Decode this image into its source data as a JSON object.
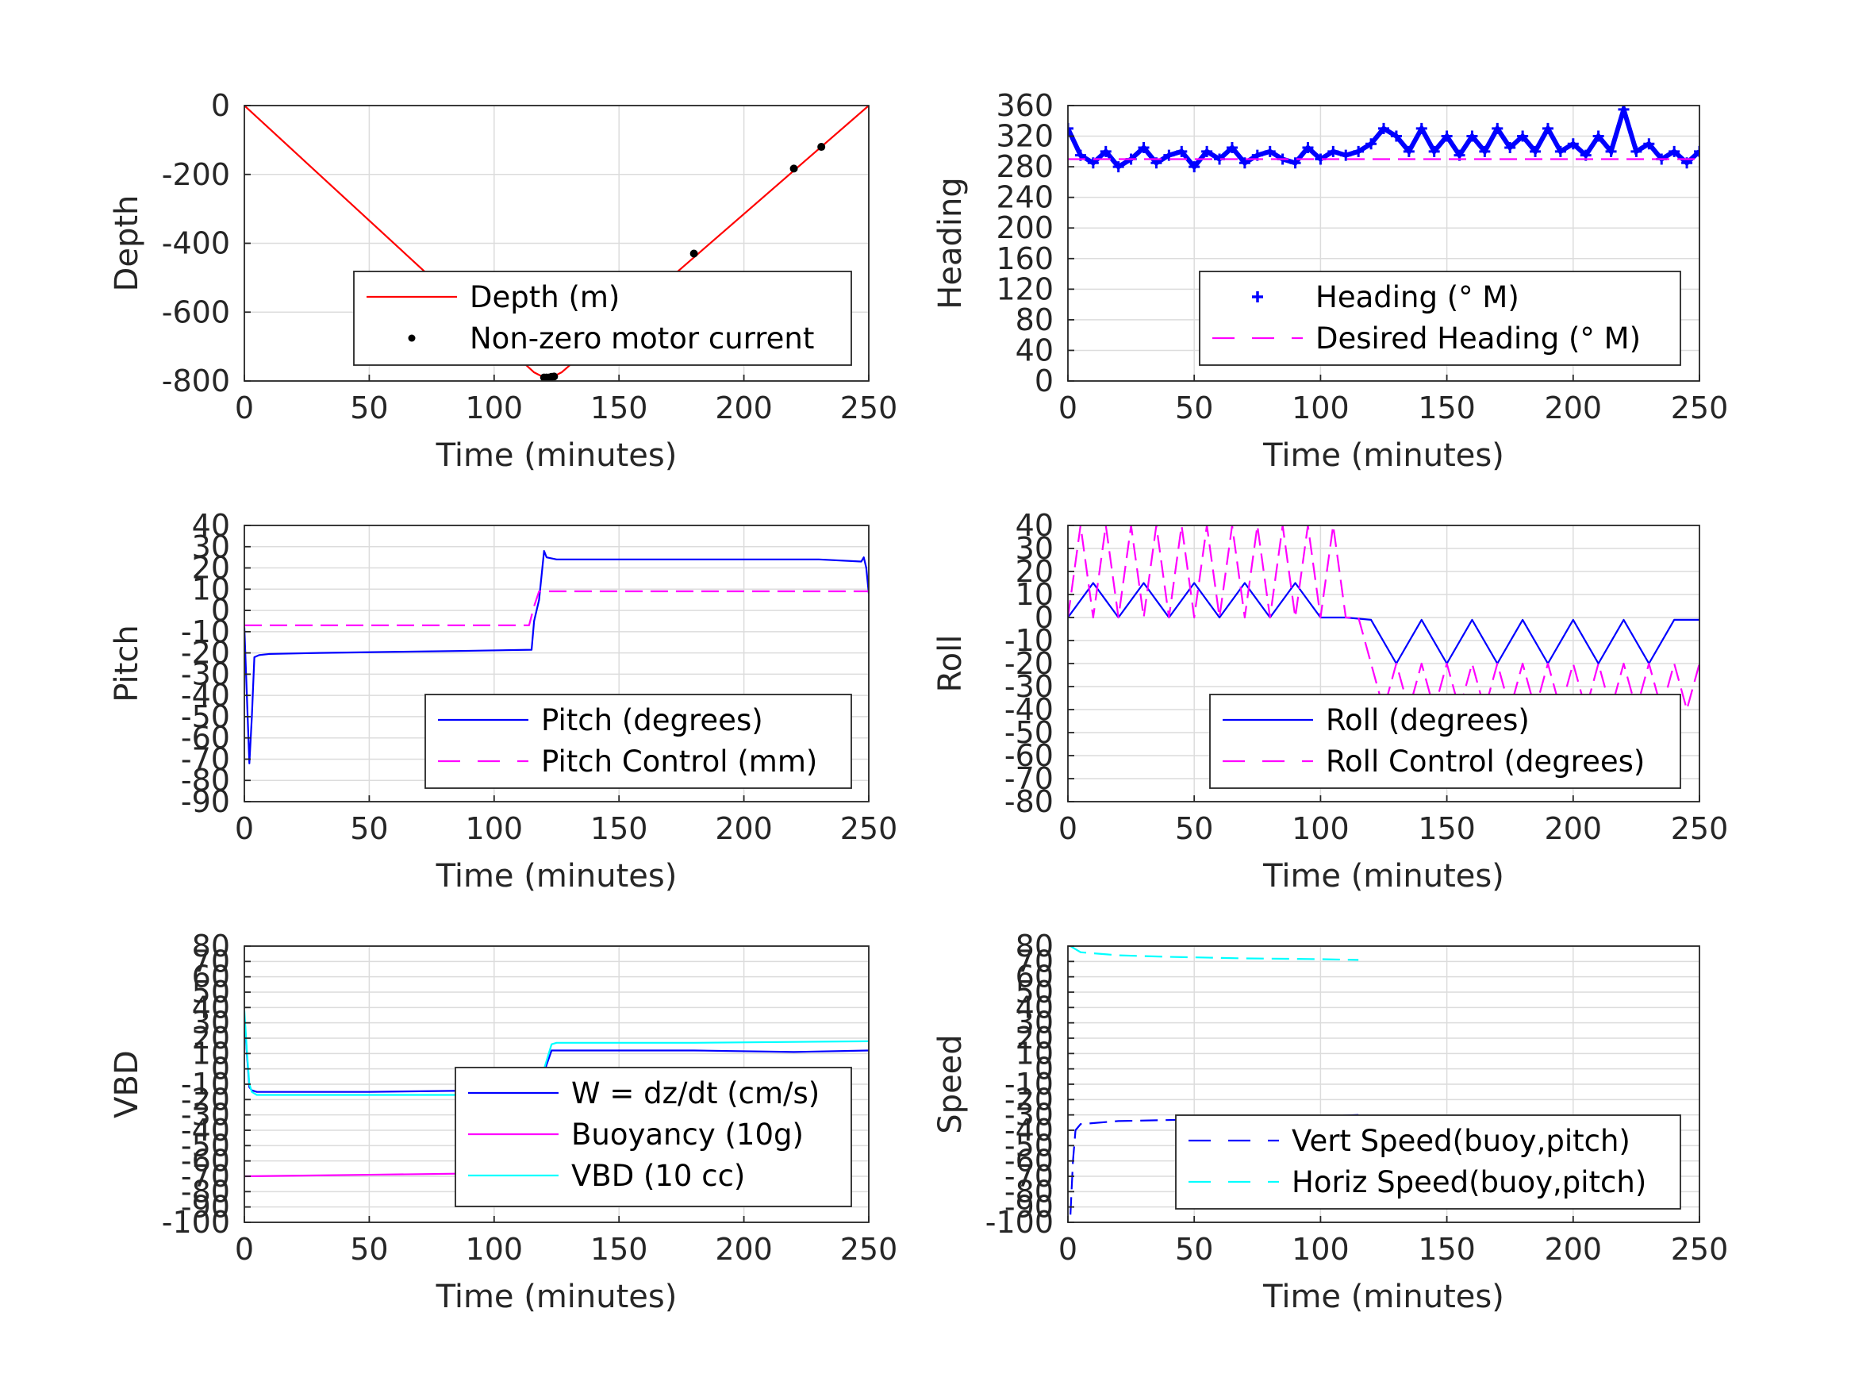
{
  "chart_data": [
    {
      "type": "line",
      "id": "depth",
      "xlabel": "Time (minutes)",
      "ylabel": "Depth",
      "xlim": [
        0,
        250
      ],
      "ylim": [
        -800,
        0
      ],
      "xticks": [
        "0",
        "50",
        "100",
        "150",
        "200",
        "250"
      ],
      "yticks": [
        "0",
        "-200",
        "-400",
        "-600",
        "-800"
      ],
      "grid": true,
      "legend_position": "bottom-right",
      "series": [
        {
          "name": "Depth (m)",
          "color": "#ff0000",
          "style": "solid",
          "x": [
            0,
            116,
            120,
            123,
            127,
            250
          ],
          "y": [
            0,
            -775,
            -790,
            -790,
            -775,
            0
          ]
        },
        {
          "name": "Non-zero motor current",
          "color": "#000000",
          "style": "dot",
          "x": [
            120,
            121,
            122,
            123,
            124,
            180,
            220,
            231
          ],
          "y": [
            -790,
            -790,
            -790,
            -788,
            -787,
            -430,
            -183,
            -120
          ]
        }
      ]
    },
    {
      "type": "line",
      "id": "heading",
      "xlabel": "Time (minutes)",
      "ylabel": "Heading",
      "xlim": [
        0,
        250
      ],
      "ylim": [
        0,
        360
      ],
      "xticks": [
        "0",
        "50",
        "100",
        "150",
        "200",
        "250"
      ],
      "yticks": [
        "0",
        "40",
        "80",
        "120",
        "160",
        "200",
        "240",
        "280",
        "320",
        "360"
      ],
      "grid": true,
      "legend_position": "bottom-right",
      "series": [
        {
          "name": "Heading (° M)",
          "color": "#0000ff",
          "style": "plus",
          "x": [
            0,
            5,
            10,
            15,
            20,
            25,
            30,
            35,
            40,
            45,
            50,
            55,
            60,
            65,
            70,
            75,
            80,
            85,
            90,
            95,
            100,
            105,
            110,
            115,
            120,
            125,
            130,
            135,
            140,
            145,
            150,
            155,
            160,
            165,
            170,
            175,
            180,
            185,
            190,
            195,
            200,
            205,
            210,
            215,
            220,
            225,
            230,
            235,
            240,
            245,
            250
          ],
          "y": [
            330,
            295,
            285,
            300,
            280,
            290,
            305,
            285,
            295,
            300,
            280,
            300,
            290,
            305,
            285,
            295,
            300,
            290,
            285,
            305,
            290,
            300,
            295,
            300,
            310,
            330,
            320,
            300,
            330,
            300,
            320,
            295,
            320,
            300,
            330,
            305,
            320,
            300,
            330,
            300,
            310,
            295,
            320,
            300,
            355,
            300,
            310,
            290,
            300,
            285,
            300
          ]
        },
        {
          "name": "Desired Heading (° M)",
          "color": "#ff00ff",
          "style": "dash",
          "x": [
            0,
            250
          ],
          "y": [
            290,
            290
          ]
        }
      ]
    },
    {
      "type": "line",
      "id": "pitch",
      "xlabel": "Time (minutes)",
      "ylabel": "Pitch",
      "xlim": [
        0,
        250
      ],
      "ylim": [
        -90,
        40
      ],
      "xticks": [
        "0",
        "50",
        "100",
        "150",
        "200",
        "250"
      ],
      "yticks": [
        "40",
        "30",
        "20",
        "10",
        "0",
        "-10",
        "-20",
        "-30",
        "-40",
        "-50",
        "-60",
        "-70",
        "-80",
        "-90"
      ],
      "grid": true,
      "legend_position": "bottom-right",
      "series": [
        {
          "name": "Pitch (degrees)",
          "color": "#0000ff",
          "style": "solid",
          "x": [
            0,
            1,
            2,
            3,
            4,
            6,
            10,
            30,
            60,
            90,
            115,
            116,
            118,
            120,
            121,
            125,
            150,
            200,
            230,
            247,
            248,
            249,
            250
          ],
          "y": [
            -8,
            -40,
            -72,
            -50,
            -22,
            -21,
            -20.5,
            -20,
            -19.5,
            -19,
            -18.5,
            -5,
            5,
            28,
            25,
            24,
            24,
            24,
            24,
            23,
            25,
            20,
            8
          ]
        },
        {
          "name": "Pitch Control (mm)",
          "color": "#ff00ff",
          "style": "dash",
          "x": [
            0,
            114,
            116,
            118,
            250
          ],
          "y": [
            -7,
            -7,
            2,
            9,
            9
          ]
        }
      ]
    },
    {
      "type": "line",
      "id": "roll",
      "xlabel": "Time (minutes)",
      "ylabel": "Roll",
      "xlim": [
        0,
        250
      ],
      "ylim": [
        -80,
        40
      ],
      "xticks": [
        "0",
        "50",
        "100",
        "150",
        "200",
        "250"
      ],
      "yticks": [
        "40",
        "30",
        "20",
        "10",
        "0",
        "-10",
        "-20",
        "-30",
        "-40",
        "-50",
        "-60",
        "-70",
        "-80"
      ],
      "grid": true,
      "legend_position": "bottom-right",
      "series": [
        {
          "name": "Roll (degrees)",
          "color": "#0000ff",
          "style": "solid",
          "x": [
            0,
            10,
            20,
            30,
            40,
            50,
            60,
            70,
            80,
            90,
            100,
            110,
            120,
            130,
            140,
            150,
            160,
            170,
            180,
            190,
            200,
            210,
            220,
            230,
            240,
            250
          ],
          "y": [
            0,
            15,
            0,
            15,
            0,
            15,
            0,
            15,
            0,
            15,
            0,
            0,
            -1,
            -20,
            -1,
            -20,
            -1,
            -20,
            -1,
            -20,
            -1,
            -20,
            -1,
            -20,
            -1,
            -1
          ]
        },
        {
          "name": "Roll Control (degrees)",
          "color": "#ff00ff",
          "style": "dash",
          "x": [
            0,
            5,
            10,
            15,
            20,
            25,
            30,
            35,
            40,
            45,
            50,
            55,
            60,
            65,
            70,
            75,
            80,
            85,
            90,
            95,
            100,
            105,
            110,
            115,
            120,
            125,
            130,
            135,
            140,
            145,
            150,
            155,
            160,
            165,
            170,
            175,
            180,
            185,
            190,
            195,
            200,
            205,
            210,
            215,
            220,
            225,
            230,
            235,
            240,
            245,
            250
          ],
          "y": [
            0,
            40,
            0,
            40,
            0,
            40,
            0,
            40,
            0,
            40,
            0,
            40,
            0,
            40,
            0,
            40,
            0,
            40,
            0,
            40,
            0,
            40,
            0,
            0,
            -20,
            -40,
            -20,
            -40,
            -20,
            -40,
            -20,
            -40,
            -20,
            -40,
            -20,
            -40,
            -20,
            -40,
            -20,
            -40,
            -20,
            -40,
            -20,
            -40,
            -20,
            -40,
            -20,
            -40,
            -20,
            -40,
            -20
          ]
        }
      ]
    },
    {
      "type": "line",
      "id": "vbd",
      "xlabel": "Time (minutes)",
      "ylabel": "VBD",
      "xlim": [
        0,
        250
      ],
      "ylim": [
        -100,
        80
      ],
      "xticks": [
        "0",
        "50",
        "100",
        "150",
        "200",
        "250"
      ],
      "yticks": [
        "80",
        "70",
        "60",
        "50",
        "40",
        "30",
        "20",
        "10",
        "0",
        "-10",
        "-20",
        "-30",
        "-40",
        "-50",
        "-60",
        "-70",
        "-80",
        "-90",
        "-100"
      ],
      "grid": true,
      "legend_position": "bottom-right",
      "series": [
        {
          "name": "W = dz/dt (cm/s)",
          "color": "#0000ff",
          "style": "solid",
          "x": [
            0,
            1,
            2,
            3,
            5,
            10,
            50,
            100,
            115,
            117,
            120,
            123,
            125,
            150,
            180,
            220,
            250
          ],
          "y": [
            35,
            10,
            -12,
            -14,
            -15,
            -15,
            -15,
            -14,
            -13,
            -8,
            -2,
            12,
            12,
            12,
            12,
            11,
            12
          ]
        },
        {
          "name": "Buoyancy (10g)",
          "color": "#ff00ff",
          "style": "solid",
          "x": [
            0,
            50,
            100,
            115
          ],
          "y": [
            -70,
            -69,
            -68,
            -68
          ]
        },
        {
          "name": "VBD (10 cc)",
          "color": "#00ffff",
          "style": "solid",
          "x": [
            0,
            1,
            2,
            3,
            5,
            50,
            100,
            115,
            118,
            120,
            123,
            125,
            180,
            250
          ],
          "y": [
            38,
            12,
            -10,
            -15,
            -17,
            -17,
            -17,
            -16,
            -10,
            0,
            16,
            17,
            17,
            18
          ]
        }
      ]
    },
    {
      "type": "line",
      "id": "speed",
      "xlabel": "Time (minutes)",
      "ylabel": "Speed",
      "xlim": [
        0,
        250
      ],
      "ylim": [
        -100,
        80
      ],
      "xticks": [
        "0",
        "50",
        "100",
        "150",
        "200",
        "250"
      ],
      "yticks": [
        "80",
        "70",
        "60",
        "50",
        "40",
        "30",
        "20",
        "10",
        "0",
        "-10",
        "-20",
        "-30",
        "-40",
        "-50",
        "-60",
        "-70",
        "-80",
        "-90",
        "-100"
      ],
      "grid": true,
      "legend_position": "bottom-right",
      "series": [
        {
          "name": "Vert Speed(buoy,pitch)",
          "color": "#0000ff",
          "style": "dash",
          "x": [
            1,
            2,
            3,
            5,
            20,
            50,
            80,
            100,
            115
          ],
          "y": [
            -95,
            -60,
            -40,
            -36,
            -34,
            -33,
            -32,
            -31,
            -30
          ]
        },
        {
          "name": "Horiz Speed(buoy,pitch)",
          "color": "#00ffff",
          "style": "dash",
          "x": [
            1,
            5,
            20,
            40,
            70,
            100,
            115
          ],
          "y": [
            80,
            76,
            74,
            73,
            72,
            71.5,
            71
          ]
        }
      ]
    }
  ]
}
